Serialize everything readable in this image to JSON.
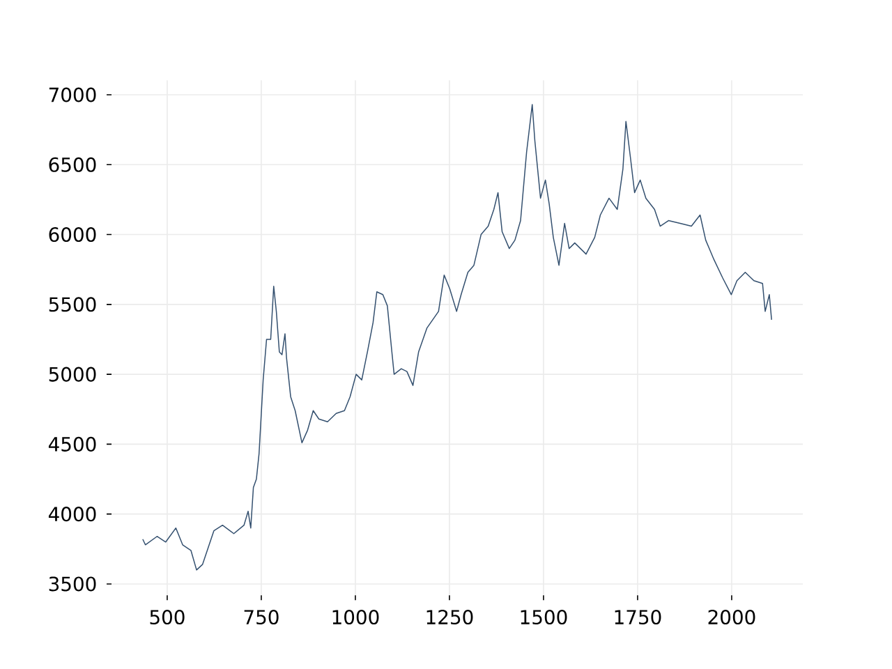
{
  "chart_data": {
    "type": "line",
    "color": "#34506f",
    "grid": true,
    "x": [
      435,
      442,
      473,
      496,
      523,
      541,
      563,
      578,
      594,
      609,
      624,
      647,
      677,
      704,
      715,
      722,
      729,
      737,
      744,
      755,
      764,
      775,
      783,
      790,
      798,
      805,
      813,
      817,
      828,
      840,
      858,
      873,
      888,
      903,
      926,
      949,
      971,
      986,
      1002,
      1017,
      1032,
      1047,
      1057,
      1073,
      1085,
      1097,
      1103,
      1122,
      1137,
      1153,
      1168,
      1190,
      1221,
      1236,
      1251,
      1269,
      1281,
      1299,
      1315,
      1334,
      1353,
      1368,
      1379,
      1390,
      1409,
      1424,
      1439,
      1455,
      1470,
      1477,
      1492,
      1505,
      1515,
      1526,
      1541,
      1556,
      1568,
      1583,
      1613,
      1636,
      1651,
      1674,
      1696,
      1711,
      1719,
      1731,
      1742,
      1757,
      1772,
      1795,
      1810,
      1832,
      1863,
      1893,
      1916,
      1931,
      1953,
      1976,
      1999,
      2014,
      2036,
      2059,
      2082,
      2089,
      2100,
      2106
    ],
    "values": [
      3820,
      3780,
      3840,
      3800,
      3900,
      3780,
      3740,
      3600,
      3640,
      3760,
      3880,
      3920,
      3860,
      3920,
      4020,
      3900,
      4190,
      4250,
      4430,
      4960,
      5250,
      5250,
      5630,
      5450,
      5160,
      5140,
      5290,
      5120,
      4840,
      4740,
      4510,
      4600,
      4740,
      4680,
      4660,
      4720,
      4740,
      4840,
      5000,
      4960,
      5160,
      5370,
      5590,
      5570,
      5490,
      5160,
      5000,
      5040,
      5020,
      4920,
      5160,
      5330,
      5450,
      5710,
      5610,
      5450,
      5570,
      5730,
      5780,
      6000,
      6060,
      6180,
      6300,
      6020,
      5900,
      5960,
      6100,
      6590,
      6930,
      6670,
      6260,
      6390,
      6220,
      5980,
      5780,
      6080,
      5900,
      5940,
      5860,
      5980,
      6140,
      6260,
      6180,
      6470,
      6810,
      6550,
      6300,
      6390,
      6260,
      6180,
      6060,
      6100,
      6080,
      6060,
      6140,
      5960,
      5820,
      5690,
      5570,
      5670,
      5730,
      5670,
      5650,
      5450,
      5570,
      5390
    ],
    "xlim": [
      352,
      2189
    ],
    "ylim": [
      3418,
      7104
    ],
    "xticks": [
      500,
      750,
      1000,
      1250,
      1500,
      1750,
      2000
    ],
    "yticks": [
      3500,
      4000,
      4500,
      5000,
      5500,
      6000,
      6500,
      7000
    ]
  }
}
